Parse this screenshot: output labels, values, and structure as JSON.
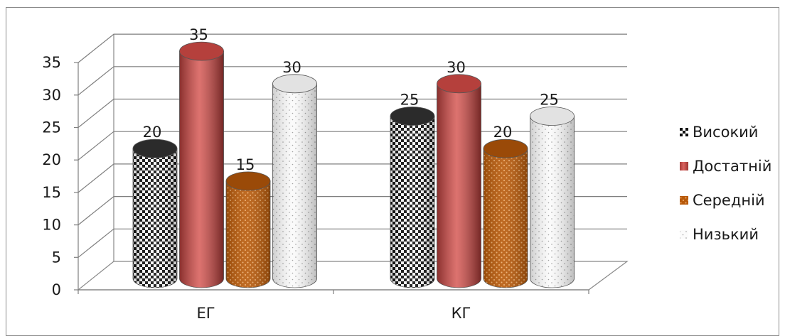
{
  "chart_data": {
    "type": "bar",
    "categories": [
      "ЕГ",
      "КГ"
    ],
    "series": [
      {
        "name": "Високий",
        "values": [
          20,
          25
        ],
        "pattern": "checker",
        "color": "#111111"
      },
      {
        "name": "Достатній",
        "values": [
          35,
          30
        ],
        "pattern": "solid",
        "color": "#c0504d"
      },
      {
        "name": "Середній",
        "values": [
          15,
          20
        ],
        "pattern": "dots",
        "color": "#b85a0a"
      },
      {
        "name": "Низький",
        "values": [
          30,
          25
        ],
        "pattern": "sparse-dots",
        "color": "#f4f4f4"
      }
    ],
    "ylim": [
      0,
      35
    ],
    "yticks": [
      0,
      5,
      10,
      15,
      20,
      25,
      30,
      35
    ],
    "grid": true,
    "legend_position": "right",
    "three_d": true,
    "shape": "cylinder"
  }
}
